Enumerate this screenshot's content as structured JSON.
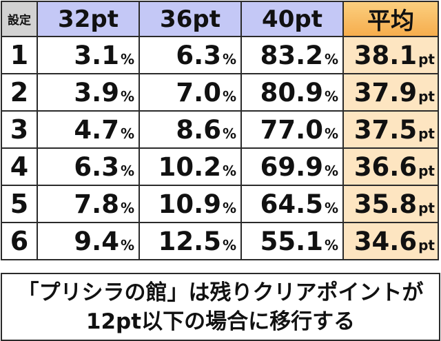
{
  "table": {
    "headers": {
      "setting": "設定",
      "c1": "32pt",
      "c2": "36pt",
      "c3": "40pt",
      "avg": "平均"
    },
    "pct_unit": "%",
    "pt_unit": "pt",
    "rows": [
      {
        "setting": "1",
        "p32": "3.1",
        "p36": "6.3",
        "p40": "83.2",
        "avg": "38.1"
      },
      {
        "setting": "2",
        "p32": "3.9",
        "p36": "7.0",
        "p40": "80.9",
        "avg": "37.9"
      },
      {
        "setting": "3",
        "p32": "4.7",
        "p36": "8.6",
        "p40": "77.0",
        "avg": "37.5"
      },
      {
        "setting": "4",
        "p32": "6.3",
        "p36": "10.2",
        "p40": "69.9",
        "avg": "36.6"
      },
      {
        "setting": "5",
        "p32": "7.8",
        "p36": "10.9",
        "p40": "64.5",
        "avg": "35.8"
      },
      {
        "setting": "6",
        "p32": "9.4",
        "p36": "12.5",
        "p40": "55.1",
        "avg": "34.6"
      }
    ]
  },
  "note": {
    "line1": "「プリシラの館」は残りクリアポイントが",
    "line2": "12pt以下の場合に移行する"
  },
  "colors": {
    "header_bg": "#c4c8f6",
    "setting_header_bg": "#d2d2d2",
    "avg_header_bg": "#f6ad4d",
    "avg_cell_bg": "#fde5c1",
    "border": "#2a2a2a"
  }
}
